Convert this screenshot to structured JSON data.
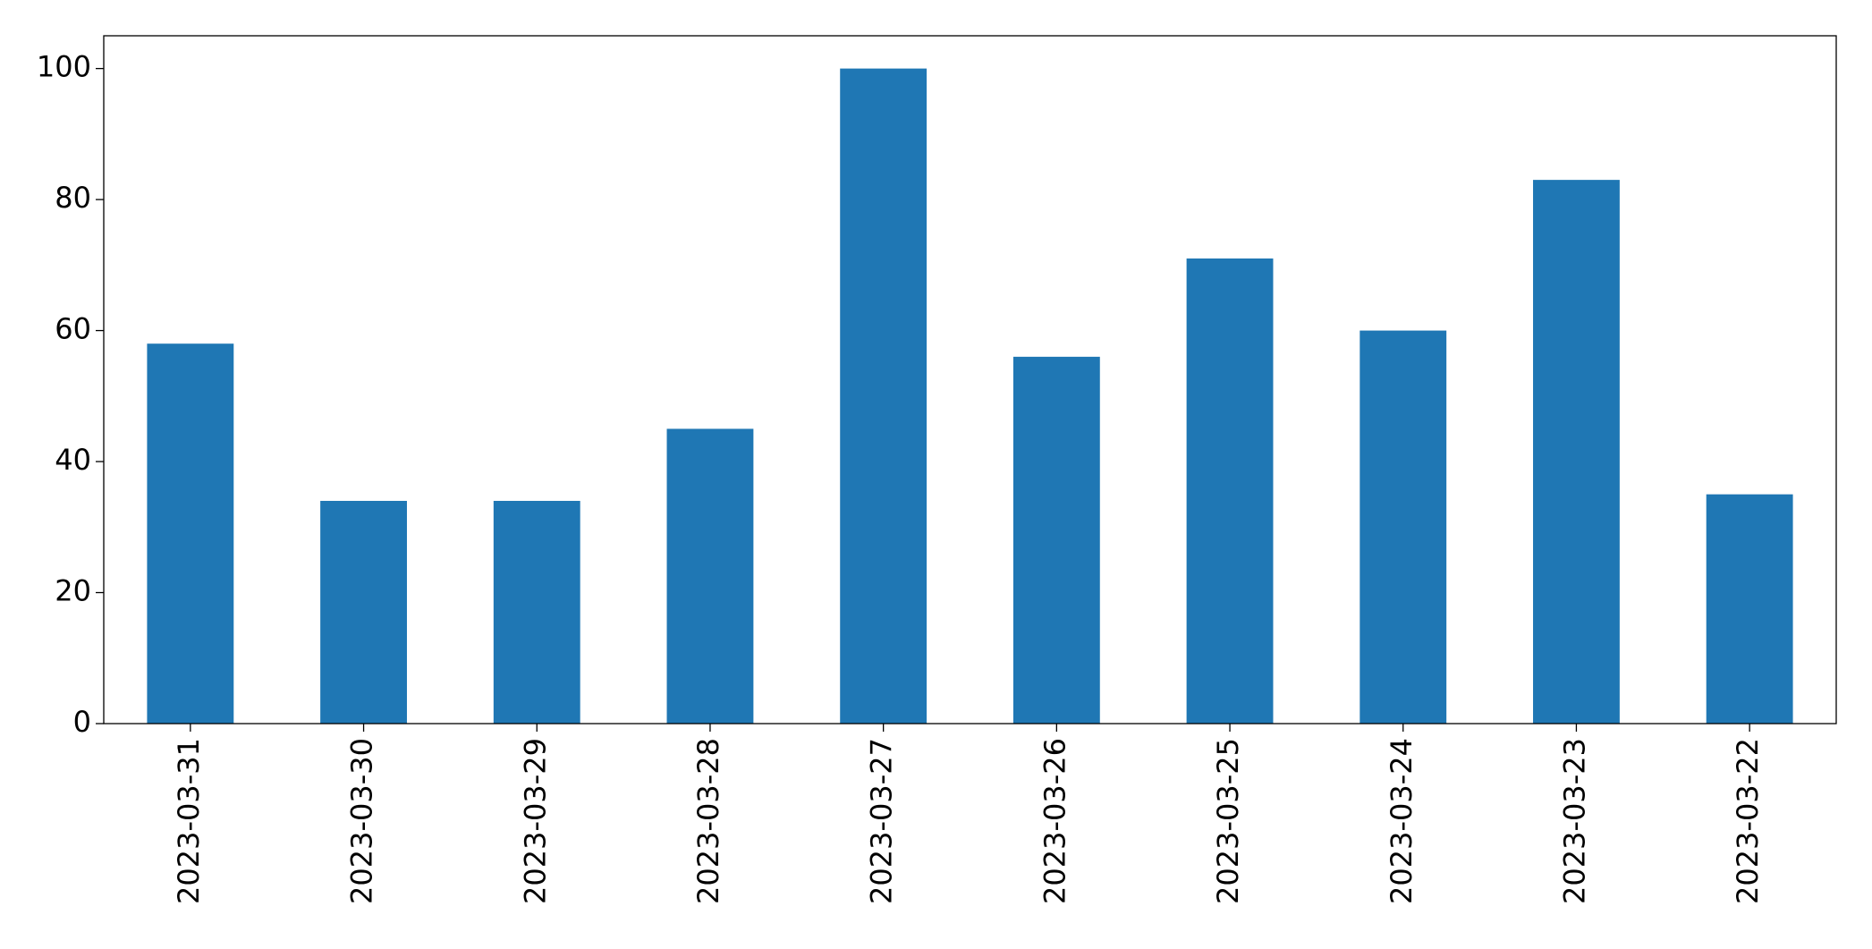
{
  "chart_data": {
    "type": "bar",
    "categories": [
      "2023-03-31",
      "2023-03-30",
      "2023-03-29",
      "2023-03-28",
      "2023-03-27",
      "2023-03-26",
      "2023-03-25",
      "2023-03-24",
      "2023-03-23",
      "2023-03-22"
    ],
    "values": [
      58,
      34,
      34,
      45,
      100,
      56,
      71,
      60,
      83,
      35
    ],
    "color": "#1f77b4",
    "ylim": [
      0,
      105
    ],
    "yticks": [
      0,
      20,
      40,
      60,
      80,
      100
    ],
    "grid": false
  }
}
